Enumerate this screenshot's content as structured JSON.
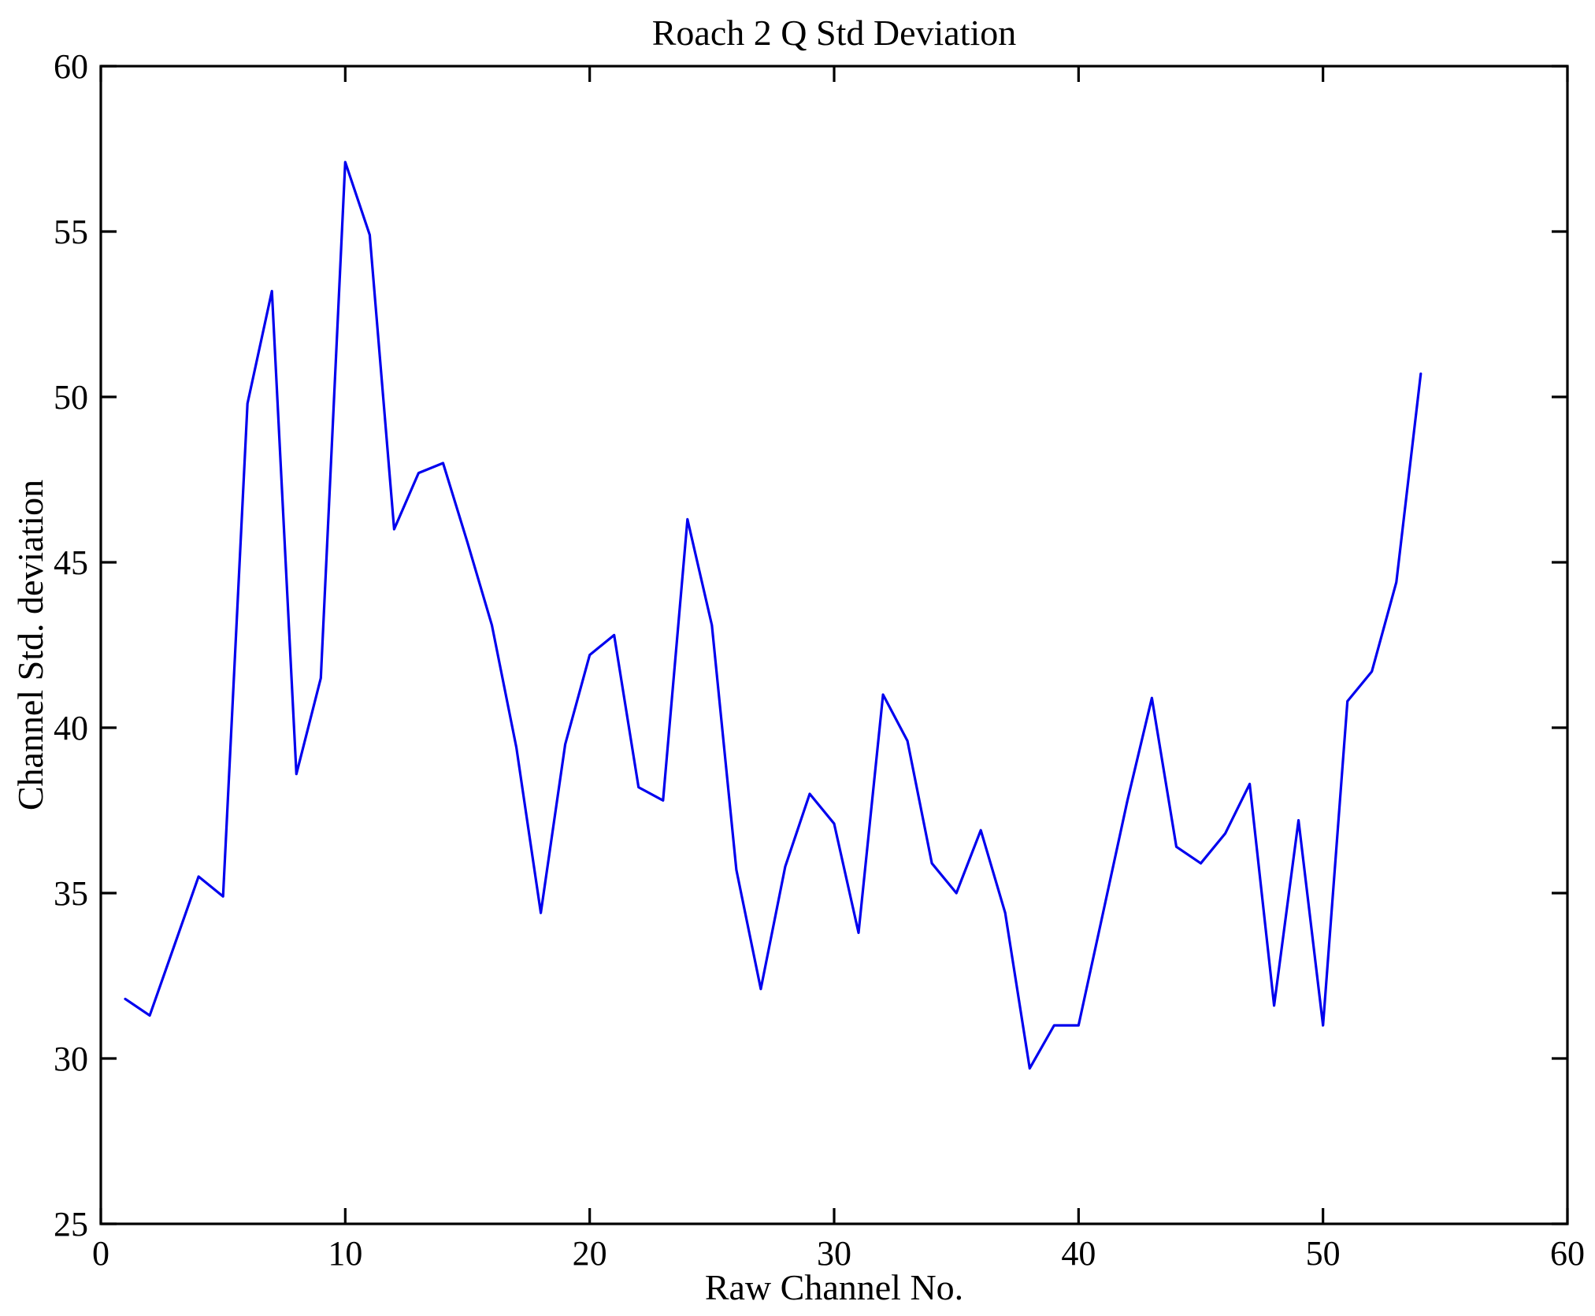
{
  "figure": {
    "background": "#ffffff"
  },
  "chart_data": {
    "type": "line",
    "title": "Roach 2 Q Std Deviation",
    "xlabel": "Raw Channel No.",
    "ylabel": "Channel Std. deviation",
    "xlim": [
      0,
      60
    ],
    "ylim": [
      25,
      60
    ],
    "xticks": [
      0,
      10,
      20,
      30,
      40,
      50,
      60
    ],
    "yticks": [
      25,
      30,
      35,
      40,
      45,
      50,
      55,
      60
    ],
    "grid": false,
    "legend": "none",
    "box": true,
    "tick_direction": "in",
    "line_color": "#0000ee",
    "axis_color": "#000000",
    "x": [
      1,
      2,
      3,
      4,
      5,
      6,
      7,
      8,
      9,
      10,
      11,
      12,
      13,
      14,
      15,
      16,
      17,
      18,
      19,
      20,
      21,
      22,
      23,
      24,
      25,
      26,
      27,
      28,
      29,
      30,
      31,
      32,
      33,
      34,
      35,
      36,
      37,
      38,
      39,
      40,
      41,
      42,
      43,
      44,
      45,
      46,
      47,
      48,
      49,
      50,
      51,
      52,
      53,
      54
    ],
    "values": [
      31.8,
      31.3,
      33.4,
      35.5,
      34.9,
      49.8,
      53.2,
      38.6,
      41.5,
      57.1,
      54.9,
      46.0,
      47.7,
      48.0,
      45.6,
      43.1,
      39.4,
      34.4,
      39.5,
      42.2,
      42.8,
      38.2,
      37.8,
      46.3,
      43.1,
      35.7,
      32.1,
      35.8,
      38.0,
      37.1,
      33.8,
      41.0,
      39.6,
      35.9,
      35.0,
      36.9,
      34.4,
      29.7,
      31.0,
      31.0,
      34.4,
      37.8,
      40.9,
      36.4,
      35.9,
      36.8,
      38.3,
      31.6,
      37.2,
      31.0,
      40.8,
      41.7,
      44.4,
      50.7
    ]
  }
}
